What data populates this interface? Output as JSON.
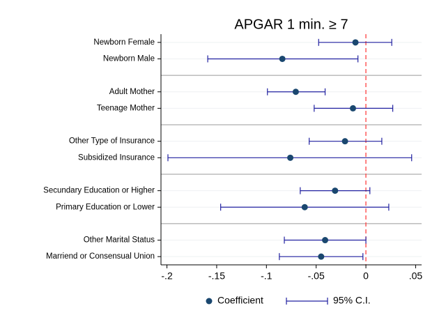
{
  "chart_data": {
    "type": "forest",
    "title": "APGAR 1 min. ≥ 7",
    "categories": [
      "Newborn Female",
      "Newborn Male",
      null,
      "Adult Mother",
      "Teenage Mother",
      null,
      "Other Type of Insurance",
      "Subsidized Insurance",
      null,
      "Secundary Education or Higher",
      "Primary Education or Lower",
      null,
      "Other Marital Status",
      "Marriend or Consensual Union"
    ],
    "series": [
      {
        "name": "Coefficient",
        "color": "#1a476f",
        "values": [
          -0.0105,
          -0.084,
          null,
          -0.0705,
          -0.013,
          null,
          -0.021,
          -0.076,
          null,
          -0.031,
          -0.0615,
          null,
          -0.041,
          -0.045
        ]
      },
      {
        "name": "95% C.I.",
        "color": "#2020a0",
        "low": [
          -0.0475,
          -0.159,
          null,
          -0.099,
          -0.052,
          null,
          -0.057,
          -0.199,
          null,
          -0.066,
          -0.146,
          null,
          -0.082,
          -0.087
        ],
        "high": [
          0.026,
          -0.008,
          null,
          -0.041,
          0.027,
          null,
          0.016,
          0.046,
          null,
          0.004,
          0.023,
          null,
          0.0,
          -0.003
        ]
      }
    ],
    "xlim": [
      -0.206,
      0.056
    ],
    "xticks": [
      {
        "value": -0.2,
        "label": "-.2"
      },
      {
        "value": -0.15,
        "label": "-.15"
      },
      {
        "value": -0.1,
        "label": "-.1"
      },
      {
        "value": -0.05,
        "label": "-.05"
      },
      0,
      {
        "value": 0.05,
        "label": ".05"
      }
    ],
    "reference_line": 0,
    "reference_color": "#ff4040"
  }
}
